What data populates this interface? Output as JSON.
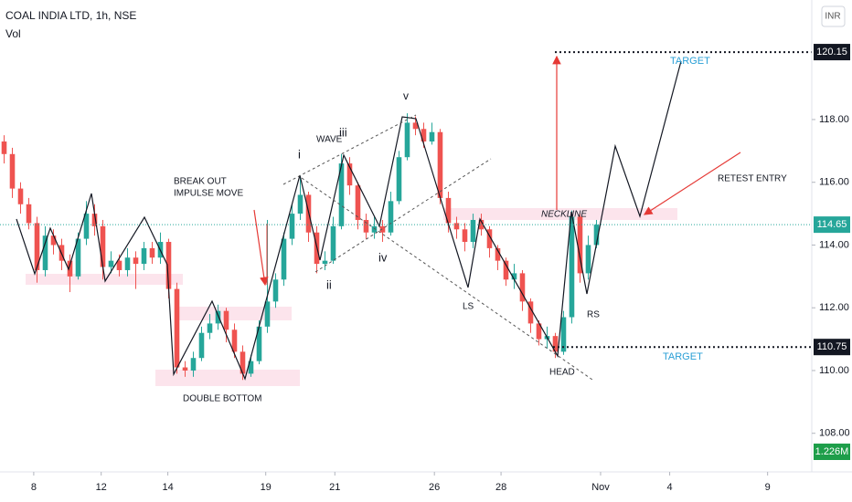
{
  "chart_data": {
    "type": "candlestick",
    "title": "COAL INDIA LTD, 1h, NSE",
    "subtitle": "Vol",
    "currency": "INR",
    "up_color": "#26a69a",
    "down_color": "#ef5350",
    "open": [
      117.3,
      116.9,
      115.8,
      115.3,
      114.7,
      113.2,
      114.3,
      114.0,
      113.5,
      113.0,
      114.2,
      115.0,
      114.6,
      113.3,
      113.5,
      113.2,
      113.6,
      113.4,
      113.9,
      113.6,
      114.1,
      112.6,
      110.1,
      110.0,
      110.4,
      111.2,
      111.5,
      111.9,
      111.3,
      110.6,
      109.9,
      110.3,
      111.4,
      112.2,
      112.9,
      114.2,
      115.0,
      115.6,
      114.4,
      113.4,
      113.5,
      114.6,
      116.6,
      115.9,
      114.8,
      114.4,
      114.6,
      114.4,
      115.4,
      116.8,
      117.9,
      117.7,
      117.3,
      117.6,
      115.5,
      114.7,
      114.5,
      114.1,
      114.8,
      114.5,
      113.9,
      113.5,
      112.9,
      113.1,
      112.2,
      111.5,
      111.0,
      111.1,
      110.6,
      111.7,
      114.9,
      113.1,
      114.0
    ],
    "high": [
      117.5,
      117.1,
      116.0,
      115.5,
      114.9,
      114.6,
      114.5,
      114.2,
      113.7,
      114.4,
      115.4,
      115.3,
      114.8,
      113.8,
      113.7,
      113.9,
      113.8,
      114.1,
      114.1,
      114.4,
      114.2,
      112.8,
      110.3,
      110.6,
      111.4,
      111.8,
      112.1,
      112.0,
      111.5,
      110.8,
      110.5,
      111.6,
      114.8,
      113.1,
      114.4,
      115.3,
      116.2,
      115.7,
      114.6,
      113.8,
      114.9,
      116.9,
      116.8,
      116.0,
      115.0,
      114.9,
      114.8,
      115.7,
      117.0,
      118.2,
      118.1,
      117.9,
      117.9,
      117.7,
      115.7,
      114.9,
      114.7,
      115.0,
      115.0,
      114.6,
      114.0,
      113.6,
      113.4,
      113.2,
      112.3,
      111.6,
      111.4,
      111.2,
      111.9,
      115.1,
      115.0,
      114.3,
      114.8
    ],
    "low": [
      116.6,
      115.5,
      115.0,
      114.5,
      112.8,
      113.0,
      113.7,
      113.2,
      112.5,
      112.9,
      114.0,
      114.3,
      112.9,
      113.1,
      113.0,
      113.0,
      112.6,
      113.2,
      113.4,
      113.4,
      112.3,
      109.9,
      109.8,
      109.8,
      110.3,
      111.0,
      111.3,
      110.9,
      110.4,
      109.7,
      109.8,
      110.2,
      111.2,
      112.0,
      112.7,
      114.0,
      114.8,
      114.1,
      113.1,
      113.2,
      113.4,
      114.5,
      115.6,
      114.5,
      114.2,
      114.2,
      114.1,
      114.3,
      115.3,
      116.7,
      117.5,
      117.1,
      117.2,
      115.3,
      114.4,
      114.2,
      113.8,
      113.9,
      114.3,
      113.6,
      113.2,
      112.7,
      112.6,
      111.9,
      111.2,
      110.8,
      110.7,
      110.4,
      110.5,
      111.5,
      112.8,
      112.9,
      113.9
    ],
    "close": [
      116.9,
      115.8,
      115.3,
      114.7,
      113.2,
      114.3,
      114.0,
      113.5,
      113.0,
      114.2,
      115.0,
      114.6,
      113.3,
      113.5,
      113.2,
      113.6,
      113.4,
      113.9,
      113.6,
      114.1,
      112.6,
      110.1,
      110.0,
      110.4,
      111.2,
      111.5,
      111.9,
      111.3,
      110.6,
      109.9,
      110.3,
      111.4,
      112.2,
      112.9,
      114.2,
      115.0,
      115.6,
      114.4,
      113.4,
      113.5,
      114.6,
      116.6,
      115.9,
      114.8,
      114.4,
      114.6,
      114.4,
      115.4,
      116.8,
      117.9,
      117.7,
      117.3,
      117.6,
      115.5,
      114.7,
      114.5,
      114.1,
      114.8,
      114.5,
      113.9,
      113.5,
      112.9,
      113.1,
      112.2,
      111.5,
      111.0,
      111.1,
      110.6,
      111.7,
      114.9,
      113.1,
      114.0,
      114.65
    ],
    "xlim": [
      -0.5,
      98.17
    ],
    "xticks": [
      {
        "value": 3.6,
        "label": "8"
      },
      {
        "value": 11.8,
        "label": "12"
      },
      {
        "value": 19.9,
        "label": "14"
      },
      {
        "value": 31.8,
        "label": "19"
      },
      {
        "value": 40.2,
        "label": "21"
      },
      {
        "value": 52.3,
        "label": "26"
      },
      {
        "value": 60.4,
        "label": "28"
      },
      {
        "value": 72.5,
        "label": "Nov"
      },
      {
        "value": 80.9,
        "label": "4"
      },
      {
        "value": 92.8,
        "label": "9"
      }
    ],
    "ylim": [
      106.77,
      121.81
    ],
    "yticks": [
      {
        "value": 108,
        "label": "108.00"
      },
      {
        "value": 110,
        "label": "110.00"
      },
      {
        "value": 112,
        "label": "112.00"
      },
      {
        "value": 114,
        "label": "114.00"
      },
      {
        "value": 116,
        "label": "116.00"
      },
      {
        "value": 118,
        "label": "118.00"
      }
    ],
    "target_levels": [
      120.15,
      110.75
    ],
    "last_price": 114.65,
    "last_volume": {
      "value": 1226000,
      "label": "1.226M"
    },
    "annotations": {
      "breakout": "BREAK OUT",
      "impulse": "IMPULSE MOVE",
      "double_bottom": "DOUBLE BOTTOM",
      "wave": "WAVE",
      "w1": "i",
      "w2": "ii",
      "w3": "iii",
      "w4": "iv",
      "w5": "v",
      "ls": "LS",
      "head": "HEAD",
      "rs": "RS",
      "neckline": "NECKLINE",
      "target_top": "TARGET",
      "target_bottom": "TARGET",
      "retest": "RETEST ENTRY"
    }
  }
}
